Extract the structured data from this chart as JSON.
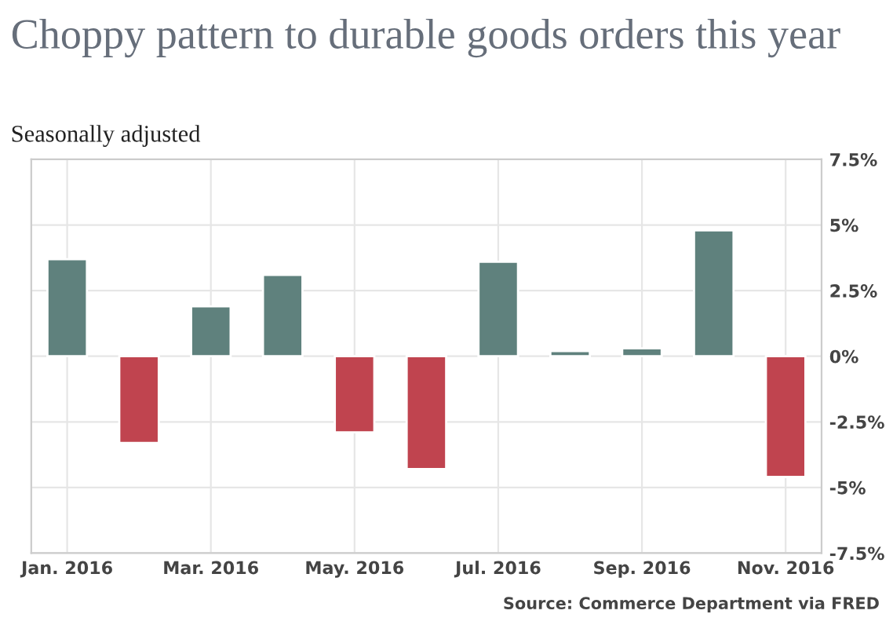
{
  "chart_data": {
    "type": "bar",
    "title": "Choppy pattern to durable goods orders this year",
    "subtitle": "Seasonally adjusted",
    "categories": [
      "Jan. 2016",
      null,
      "Mar. 2016",
      null,
      "May. 2016",
      null,
      "Jul. 2016",
      null,
      "Sep. 2016",
      null,
      "Nov. 2016"
    ],
    "values": [
      3.7,
      -3.3,
      1.9,
      3.1,
      -2.9,
      -4.3,
      3.6,
      0.2,
      0.3,
      4.8,
      -4.6
    ],
    "colors": [
      "#5f817d",
      "#c0444f",
      "#5f817d",
      "#5f817d",
      "#c0444f",
      "#c0444f",
      "#5f817d",
      "#5f817d",
      "#5f817d",
      "#5f817d",
      "#c0444f"
    ],
    "ylim": [
      -7.5,
      7.5
    ],
    "yticks": [
      {
        "value": -7.5,
        "label": "-7.5%"
      },
      {
        "value": -5,
        "label": "-5%"
      },
      {
        "value": -2.5,
        "label": "-2.5%"
      },
      {
        "value": 0,
        "label": "0%"
      },
      {
        "value": 2.5,
        "label": "2.5%"
      },
      {
        "value": 5,
        "label": "5%"
      },
      {
        "value": 7.5,
        "label": "7.5%"
      }
    ],
    "grid": true,
    "annotations": [
      "Source: Commerce Department via FRED"
    ]
  }
}
